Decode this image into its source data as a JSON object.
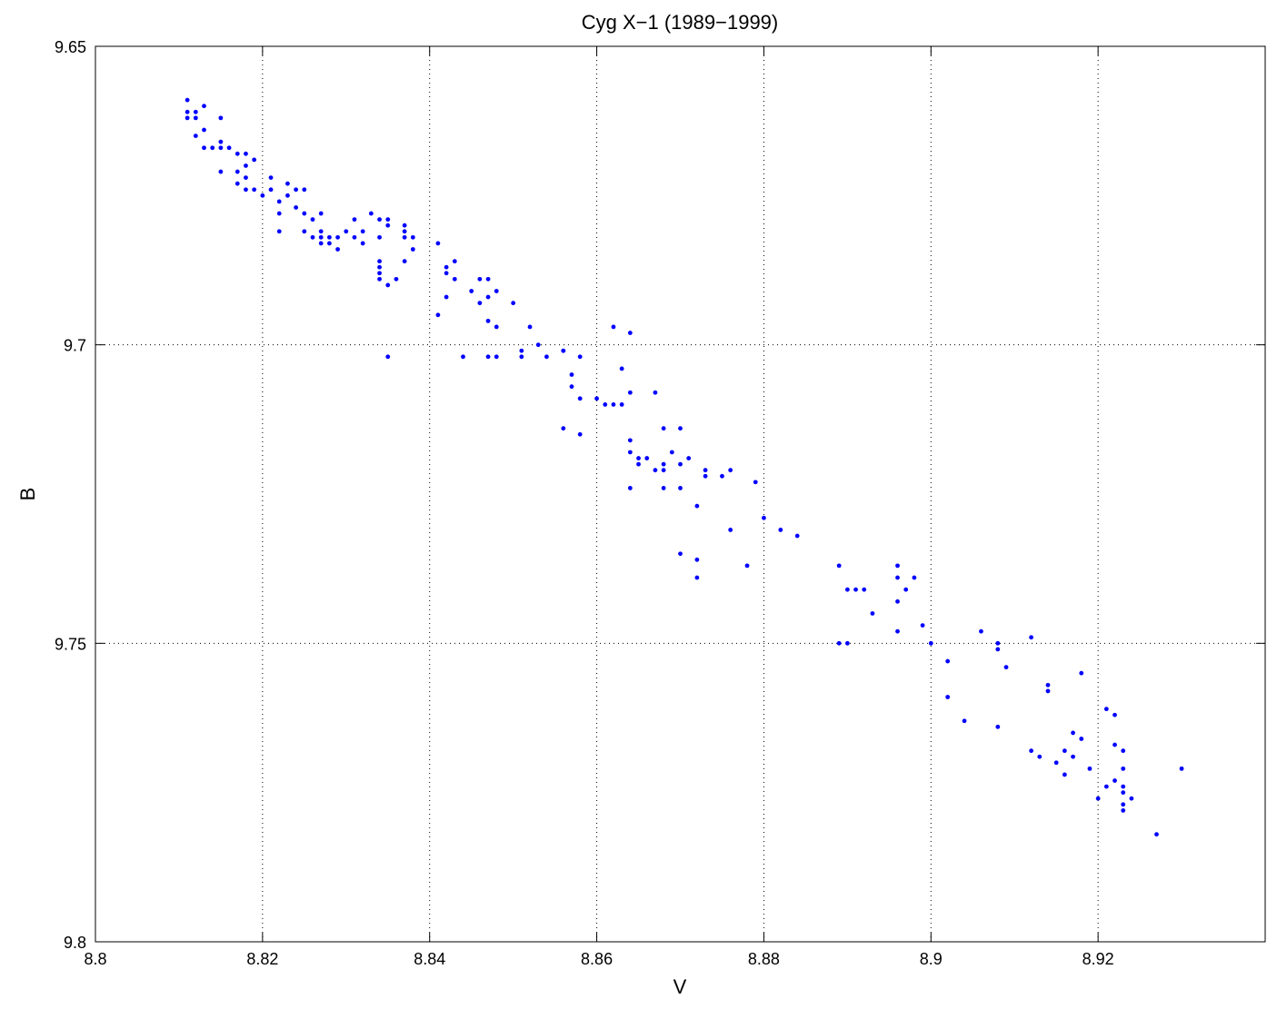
{
  "chart_data": {
    "type": "scatter",
    "title": "Cyg X−1 (1989−1999)",
    "xlabel": "V",
    "ylabel": "B",
    "xlim": [
      8.8,
      8.94
    ],
    "ylim": [
      9.65,
      9.8
    ],
    "y_reversed": true,
    "grid": true,
    "marker_color": "#0000ff",
    "x_ticks": [
      8.8,
      8.82,
      8.84,
      8.86,
      8.88,
      8.9,
      8.92
    ],
    "x_tick_labels": [
      "8.8",
      "8.82",
      "8.84",
      "8.86",
      "8.88",
      "8.9",
      "8.92"
    ],
    "y_ticks": [
      9.65,
      9.7,
      9.75,
      9.8
    ],
    "y_tick_labels": [
      "9.65",
      "9.7",
      "9.75",
      "9.8"
    ],
    "series": [
      {
        "points": [
          [
            8.811,
            9.659
          ],
          [
            8.811,
            9.661
          ],
          [
            8.811,
            9.662
          ],
          [
            8.812,
            9.661
          ],
          [
            8.812,
            9.662
          ],
          [
            8.812,
            9.665
          ],
          [
            8.813,
            9.66
          ],
          [
            8.813,
            9.664
          ],
          [
            8.813,
            9.667
          ],
          [
            8.814,
            9.667
          ],
          [
            8.815,
            9.662
          ],
          [
            8.815,
            9.666
          ],
          [
            8.815,
            9.667
          ],
          [
            8.815,
            9.671
          ],
          [
            8.816,
            9.667
          ],
          [
            8.817,
            9.668
          ],
          [
            8.817,
            9.671
          ],
          [
            8.817,
            9.673
          ],
          [
            8.818,
            9.668
          ],
          [
            8.818,
            9.67
          ],
          [
            8.818,
            9.672
          ],
          [
            8.818,
            9.674
          ],
          [
            8.819,
            9.669
          ],
          [
            8.819,
            9.674
          ],
          [
            8.82,
            9.675
          ],
          [
            8.821,
            9.672
          ],
          [
            8.821,
            9.674
          ],
          [
            8.822,
            9.676
          ],
          [
            8.822,
            9.678
          ],
          [
            8.822,
            9.681
          ],
          [
            8.823,
            9.673
          ],
          [
            8.823,
            9.675
          ],
          [
            8.824,
            9.674
          ],
          [
            8.824,
            9.677
          ],
          [
            8.825,
            9.674
          ],
          [
            8.825,
            9.678
          ],
          [
            8.825,
            9.681
          ],
          [
            8.826,
            9.679
          ],
          [
            8.826,
            9.682
          ],
          [
            8.827,
            9.678
          ],
          [
            8.827,
            9.681
          ],
          [
            8.827,
            9.682
          ],
          [
            8.827,
            9.683
          ],
          [
            8.828,
            9.682
          ],
          [
            8.828,
            9.683
          ],
          [
            8.829,
            9.682
          ],
          [
            8.829,
            9.684
          ],
          [
            8.83,
            9.681
          ],
          [
            8.831,
            9.679
          ],
          [
            8.831,
            9.682
          ],
          [
            8.832,
            9.681
          ],
          [
            8.832,
            9.683
          ],
          [
            8.833,
            9.678
          ],
          [
            8.834,
            9.679
          ],
          [
            8.834,
            9.682
          ],
          [
            8.834,
            9.686
          ],
          [
            8.834,
            9.687
          ],
          [
            8.834,
            9.688
          ],
          [
            8.834,
            9.689
          ],
          [
            8.835,
            9.679
          ],
          [
            8.835,
            9.68
          ],
          [
            8.835,
            9.69
          ],
          [
            8.835,
            9.702
          ],
          [
            8.836,
            9.689
          ],
          [
            8.837,
            9.68
          ],
          [
            8.837,
            9.681
          ],
          [
            8.837,
            9.682
          ],
          [
            8.837,
            9.686
          ],
          [
            8.838,
            9.682
          ],
          [
            8.838,
            9.684
          ],
          [
            8.841,
            9.683
          ],
          [
            8.841,
            9.695
          ],
          [
            8.842,
            9.687
          ],
          [
            8.842,
            9.688
          ],
          [
            8.842,
            9.692
          ],
          [
            8.843,
            9.686
          ],
          [
            8.843,
            9.689
          ],
          [
            8.844,
            9.702
          ],
          [
            8.845,
            9.691
          ],
          [
            8.846,
            9.689
          ],
          [
            8.846,
            9.693
          ],
          [
            8.847,
            9.689
          ],
          [
            8.847,
            9.692
          ],
          [
            8.847,
            9.696
          ],
          [
            8.847,
            9.702
          ],
          [
            8.848,
            9.691
          ],
          [
            8.848,
            9.697
          ],
          [
            8.848,
            9.702
          ],
          [
            8.85,
            9.693
          ],
          [
            8.851,
            9.702
          ],
          [
            8.851,
            9.701
          ],
          [
            8.852,
            9.697
          ],
          [
            8.853,
            9.7
          ],
          [
            8.854,
            9.702
          ],
          [
            8.856,
            9.701
          ],
          [
            8.856,
            9.701
          ],
          [
            8.857,
            9.705
          ],
          [
            8.857,
            9.707
          ],
          [
            8.858,
            9.702
          ],
          [
            8.858,
            9.709
          ],
          [
            8.856,
            9.714
          ],
          [
            8.858,
            9.715
          ],
          [
            8.86,
            9.709
          ],
          [
            8.861,
            9.71
          ],
          [
            8.862,
            9.697
          ],
          [
            8.862,
            9.71
          ],
          [
            8.863,
            9.704
          ],
          [
            8.863,
            9.71
          ],
          [
            8.864,
            9.698
          ],
          [
            8.864,
            9.708
          ],
          [
            8.864,
            9.716
          ],
          [
            8.864,
            9.718
          ],
          [
            8.864,
            9.724
          ],
          [
            8.865,
            9.719
          ],
          [
            8.865,
            9.72
          ],
          [
            8.866,
            9.719
          ],
          [
            8.867,
            9.708
          ],
          [
            8.867,
            9.721
          ],
          [
            8.868,
            9.714
          ],
          [
            8.868,
            9.72
          ],
          [
            8.868,
            9.721
          ],
          [
            8.868,
            9.724
          ],
          [
            8.869,
            9.718
          ],
          [
            8.87,
            9.714
          ],
          [
            8.87,
            9.72
          ],
          [
            8.87,
            9.724
          ],
          [
            8.87,
            9.735
          ],
          [
            8.871,
            9.719
          ],
          [
            8.872,
            9.727
          ],
          [
            8.872,
            9.736
          ],
          [
            8.872,
            9.739
          ],
          [
            8.873,
            9.721
          ],
          [
            8.873,
            9.722
          ],
          [
            8.875,
            9.722
          ],
          [
            8.876,
            9.721
          ],
          [
            8.876,
            9.731
          ],
          [
            8.878,
            9.737
          ],
          [
            8.879,
            9.723
          ],
          [
            8.88,
            9.729
          ],
          [
            8.882,
            9.731
          ],
          [
            8.884,
            9.732
          ],
          [
            8.889,
            9.737
          ],
          [
            8.889,
            9.75
          ],
          [
            8.89,
            9.741
          ],
          [
            8.89,
            9.75
          ],
          [
            8.891,
            9.741
          ],
          [
            8.892,
            9.741
          ],
          [
            8.893,
            9.745
          ],
          [
            8.896,
            9.737
          ],
          [
            8.896,
            9.739
          ],
          [
            8.896,
            9.743
          ],
          [
            8.896,
            9.748
          ],
          [
            8.897,
            9.741
          ],
          [
            8.898,
            9.739
          ],
          [
            8.899,
            9.747
          ],
          [
            8.9,
            9.75
          ],
          [
            8.902,
            9.753
          ],
          [
            8.902,
            9.759
          ],
          [
            8.904,
            9.763
          ],
          [
            8.906,
            9.748
          ],
          [
            8.908,
            9.75
          ],
          [
            8.908,
            9.751
          ],
          [
            8.908,
            9.764
          ],
          [
            8.909,
            9.754
          ],
          [
            8.912,
            9.749
          ],
          [
            8.912,
            9.768
          ],
          [
            8.913,
            9.769
          ],
          [
            8.914,
            9.757
          ],
          [
            8.914,
            9.758
          ],
          [
            8.915,
            9.77
          ],
          [
            8.916,
            9.768
          ],
          [
            8.916,
            9.772
          ],
          [
            8.917,
            9.765
          ],
          [
            8.917,
            9.769
          ],
          [
            8.918,
            9.755
          ],
          [
            8.918,
            9.766
          ],
          [
            8.919,
            9.771
          ],
          [
            8.92,
            9.776
          ],
          [
            8.921,
            9.761
          ],
          [
            8.921,
            9.774
          ],
          [
            8.922,
            9.762
          ],
          [
            8.922,
            9.767
          ],
          [
            8.922,
            9.773
          ],
          [
            8.923,
            9.768
          ],
          [
            8.923,
            9.771
          ],
          [
            8.923,
            9.774
          ],
          [
            8.923,
            9.775
          ],
          [
            8.923,
            9.777
          ],
          [
            8.923,
            9.778
          ],
          [
            8.924,
            9.776
          ],
          [
            8.927,
            9.782
          ],
          [
            8.93,
            9.771
          ]
        ]
      }
    ]
  }
}
